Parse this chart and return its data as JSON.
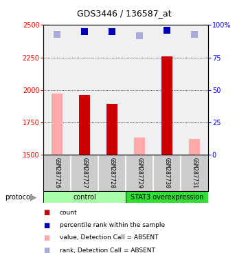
{
  "title": "GDS3446 / 136587_at",
  "samples": [
    "GSM287726",
    "GSM287727",
    "GSM287728",
    "GSM287729",
    "GSM287730",
    "GSM287731"
  ],
  "bar_values": [
    1970,
    1960,
    1890,
    1630,
    2260,
    1620
  ],
  "bar_absent": [
    true,
    false,
    false,
    true,
    false,
    true
  ],
  "percentile_values": [
    93,
    95,
    95,
    92,
    96,
    93
  ],
  "percentile_absent": [
    true,
    false,
    false,
    true,
    false,
    true
  ],
  "ylim_left": [
    1500,
    2500
  ],
  "ylim_right": [
    0,
    100
  ],
  "yticks_left": [
    1500,
    1750,
    2000,
    2250,
    2500
  ],
  "yticks_right": [
    0,
    25,
    50,
    75,
    100
  ],
  "groups": [
    {
      "label": "control",
      "color": "#aaffaa",
      "count": 3
    },
    {
      "label": "STAT3 overexpression",
      "color": "#33dd33",
      "count": 3
    }
  ],
  "bar_color_present": "#cc0000",
  "bar_color_absent": "#ffaaaa",
  "dot_color_present": "#0000bb",
  "dot_color_absent": "#aaaadd",
  "sample_bg_color": "#cccccc",
  "plot_bg": "#f0f0f0",
  "grid_dotted_ticks": [
    1750,
    2000,
    2250
  ],
  "legend_items": [
    {
      "label": "count",
      "color": "#cc0000"
    },
    {
      "label": "percentile rank within the sample",
      "color": "#0000bb"
    },
    {
      "label": "value, Detection Call = ABSENT",
      "color": "#ffaaaa"
    },
    {
      "label": "rank, Detection Call = ABSENT",
      "color": "#aaaadd"
    }
  ]
}
